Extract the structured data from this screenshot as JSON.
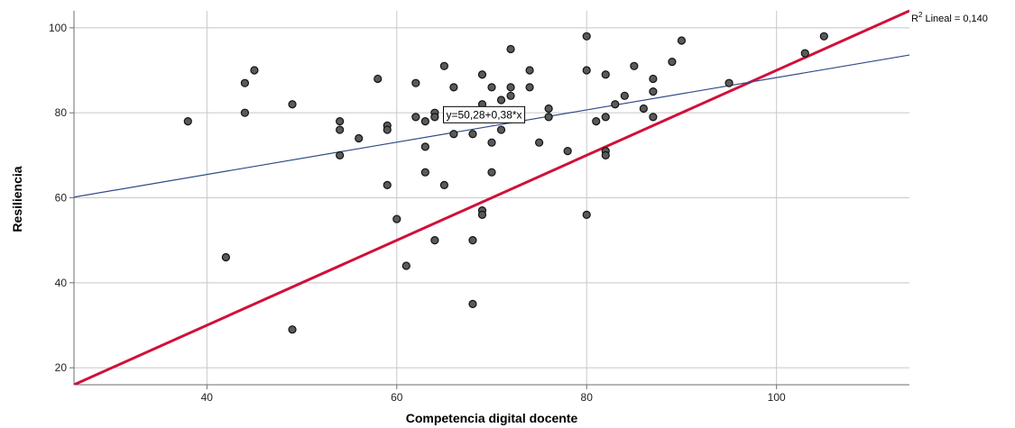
{
  "chart_data": {
    "type": "scatter",
    "xlabel": "Competencia digital docente",
    "ylabel": "Resiliencia",
    "xlim": [
      26,
      114
    ],
    "ylim": [
      16,
      104
    ],
    "x_ticks": [
      40,
      60,
      80,
      100
    ],
    "y_ticks": [
      20,
      40,
      60,
      80,
      100
    ],
    "grid": true,
    "colors": {
      "point_fill": "#5a5a5a",
      "point_stroke": "#111111",
      "fit_line": "#2e4a87",
      "reference_line": "#d0103a",
      "grid": "#c8c8c8",
      "axis": "#6e6e6e"
    },
    "points": [
      {
        "x": 38,
        "y": 78
      },
      {
        "x": 42,
        "y": 46
      },
      {
        "x": 44,
        "y": 87
      },
      {
        "x": 44,
        "y": 80
      },
      {
        "x": 45,
        "y": 90
      },
      {
        "x": 49,
        "y": 82
      },
      {
        "x": 49,
        "y": 29
      },
      {
        "x": 54,
        "y": 78
      },
      {
        "x": 54,
        "y": 76
      },
      {
        "x": 54,
        "y": 70
      },
      {
        "x": 56,
        "y": 74
      },
      {
        "x": 58,
        "y": 88
      },
      {
        "x": 59,
        "y": 77
      },
      {
        "x": 59,
        "y": 76
      },
      {
        "x": 59,
        "y": 63
      },
      {
        "x": 60,
        "y": 55
      },
      {
        "x": 61,
        "y": 44
      },
      {
        "x": 62,
        "y": 87
      },
      {
        "x": 62,
        "y": 79
      },
      {
        "x": 63,
        "y": 78
      },
      {
        "x": 63,
        "y": 72
      },
      {
        "x": 63,
        "y": 66
      },
      {
        "x": 64,
        "y": 80
      },
      {
        "x": 64,
        "y": 79
      },
      {
        "x": 64,
        "y": 50
      },
      {
        "x": 65,
        "y": 91
      },
      {
        "x": 65,
        "y": 63
      },
      {
        "x": 66,
        "y": 86
      },
      {
        "x": 66,
        "y": 75
      },
      {
        "x": 68,
        "y": 75
      },
      {
        "x": 68,
        "y": 50
      },
      {
        "x": 68,
        "y": 35
      },
      {
        "x": 69,
        "y": 89
      },
      {
        "x": 69,
        "y": 82
      },
      {
        "x": 69,
        "y": 57
      },
      {
        "x": 69,
        "y": 56
      },
      {
        "x": 70,
        "y": 86
      },
      {
        "x": 70,
        "y": 73
      },
      {
        "x": 70,
        "y": 66
      },
      {
        "x": 71,
        "y": 83
      },
      {
        "x": 71,
        "y": 76
      },
      {
        "x": 72,
        "y": 95
      },
      {
        "x": 72,
        "y": 86
      },
      {
        "x": 72,
        "y": 84
      },
      {
        "x": 74,
        "y": 90
      },
      {
        "x": 74,
        "y": 86
      },
      {
        "x": 75,
        "y": 73
      },
      {
        "x": 76,
        "y": 81
      },
      {
        "x": 76,
        "y": 79
      },
      {
        "x": 78,
        "y": 71
      },
      {
        "x": 80,
        "y": 98
      },
      {
        "x": 80,
        "y": 90
      },
      {
        "x": 80,
        "y": 56
      },
      {
        "x": 81,
        "y": 78
      },
      {
        "x": 82,
        "y": 89
      },
      {
        "x": 82,
        "y": 79
      },
      {
        "x": 82,
        "y": 71
      },
      {
        "x": 82,
        "y": 70
      },
      {
        "x": 83,
        "y": 82
      },
      {
        "x": 84,
        "y": 84
      },
      {
        "x": 85,
        "y": 91
      },
      {
        "x": 86,
        "y": 81
      },
      {
        "x": 87,
        "y": 88
      },
      {
        "x": 87,
        "y": 85
      },
      {
        "x": 87,
        "y": 79
      },
      {
        "x": 89,
        "y": 92
      },
      {
        "x": 90,
        "y": 97
      },
      {
        "x": 95,
        "y": 87
      },
      {
        "x": 103,
        "y": 94
      },
      {
        "x": 105,
        "y": 98
      }
    ],
    "fit_line": {
      "intercept": 50.28,
      "slope": 0.38,
      "equation": "y=50,28+0,38*x"
    },
    "reference_line": {
      "intercept": -10,
      "slope": 1
    },
    "r2_label": {
      "prefix": "R",
      "sup": "2",
      "text": " Lineal = 0,140"
    }
  }
}
